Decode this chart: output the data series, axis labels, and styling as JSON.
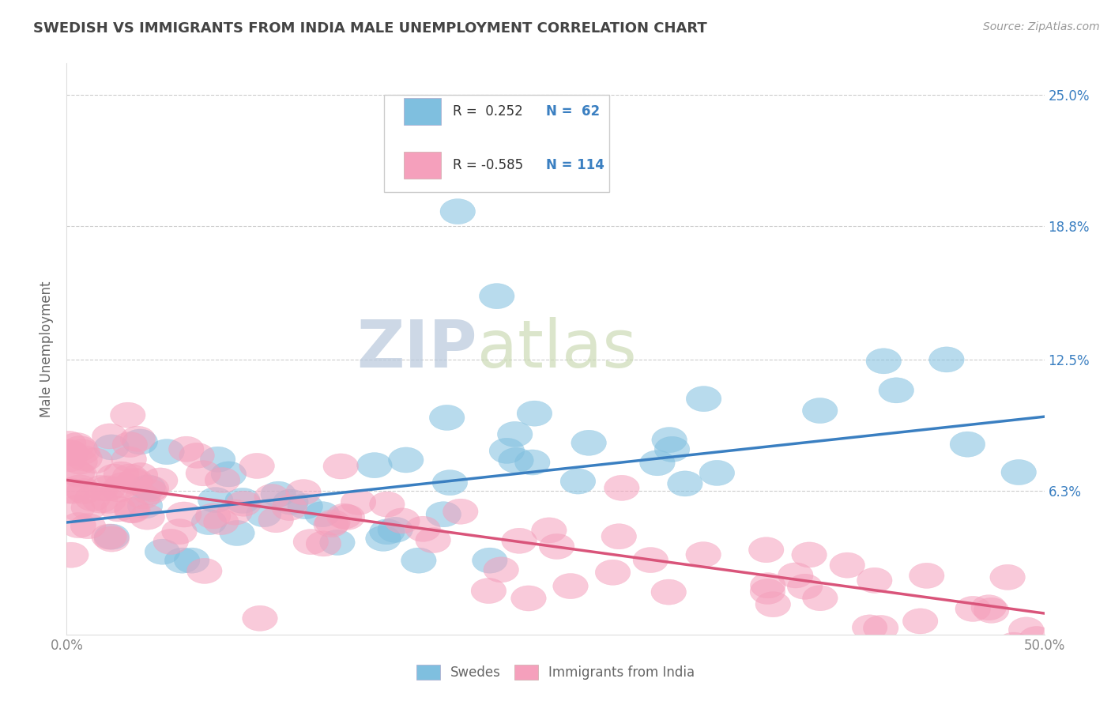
{
  "title": "SWEDISH VS IMMIGRANTS FROM INDIA MALE UNEMPLOYMENT CORRELATION CHART",
  "source_text": "Source: ZipAtlas.com",
  "ylabel": "Male Unemployment",
  "watermark": "ZIPatlas",
  "xmin": 0.0,
  "xmax": 0.5,
  "ymin": -0.005,
  "ymax": 0.265,
  "yticks": [
    0.063,
    0.125,
    0.188,
    0.25
  ],
  "ytick_labels": [
    "6.3%",
    "12.5%",
    "18.8%",
    "25.0%"
  ],
  "xticks": [
    0.0,
    0.1,
    0.2,
    0.3,
    0.4,
    0.5
  ],
  "xtick_labels": [
    "0.0%",
    "",
    "",
    "",
    "",
    "50.0%"
  ],
  "legend_r1": "R =  0.252",
  "legend_n1": "N =  62",
  "legend_r2": "R = -0.585",
  "legend_n2": "N = 114",
  "legend_label1": "Swedes",
  "legend_label2": "Immigrants from India",
  "blue_color": "#7fbfdf",
  "pink_color": "#f5a0bc",
  "blue_line_color": "#3a7fc1",
  "pink_line_color": "#d9547a",
  "title_color": "#444444",
  "axis_label_color": "#666666",
  "tick_color": "#888888",
  "source_color": "#999999",
  "watermark_color": "#d0d8e8",
  "grid_color": "#cccccc",
  "background_color": "#ffffff",
  "blue_trend_x": [
    0.0,
    0.5
  ],
  "blue_trend_y": [
    0.048,
    0.098
  ],
  "pink_trend_x": [
    0.0,
    0.5
  ],
  "pink_trend_y": [
    0.068,
    0.005
  ]
}
